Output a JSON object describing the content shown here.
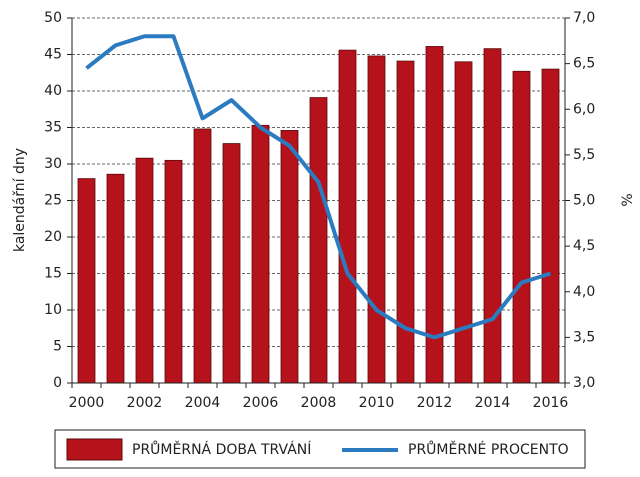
{
  "chart_data": {
    "type": "bar_line",
    "categories": [
      "2000",
      null,
      "2002",
      null,
      "2004",
      null,
      "2006",
      null,
      "2008",
      null,
      "2010",
      null,
      "2012",
      null,
      "2014",
      null,
      "2016"
    ],
    "ylabel": "kalendářní dny",
    "y2label": "%",
    "ylim": [
      0,
      50
    ],
    "yticks": [
      0,
      5,
      10,
      15,
      20,
      25,
      30,
      35,
      40,
      45,
      50
    ],
    "y2lim": [
      3,
      7
    ],
    "y2ticks": [
      {
        "value": 3,
        "label": "3,0"
      },
      {
        "value": 3.5,
        "label": "3,5"
      },
      {
        "value": 4,
        "label": "4,0"
      },
      {
        "value": 4.5,
        "label": "4,5"
      },
      {
        "value": 5,
        "label": "5,0"
      },
      {
        "value": 5.5,
        "label": "5,5"
      },
      {
        "value": 6,
        "label": "6,0"
      },
      {
        "value": 6.5,
        "label": "6,5"
      },
      {
        "value": 7,
        "label": "7,0"
      }
    ],
    "grid": true,
    "series": [
      {
        "name": "PRŮMĚRNÁ DOBA TRVÁNÍ",
        "kind": "bar",
        "color": "#b5121b",
        "values": [
          28,
          28.6,
          30.8,
          30.5,
          34.8,
          32.8,
          35.3,
          34.6,
          39.1,
          45.6,
          44.8,
          44.1,
          46.1,
          44,
          45.8,
          42.7,
          43
        ]
      },
      {
        "name": "PRŮMĚRNÉ PROCENTO",
        "kind": "line",
        "axis": "y2",
        "color": "#2b7bc0",
        "values": [
          6.45,
          6.7,
          6.8,
          6.8,
          5.9,
          6.1,
          5.8,
          5.6,
          5.2,
          4.2,
          3.8,
          3.6,
          3.5,
          3.6,
          3.7,
          4.1,
          4.2
        ]
      }
    ]
  }
}
